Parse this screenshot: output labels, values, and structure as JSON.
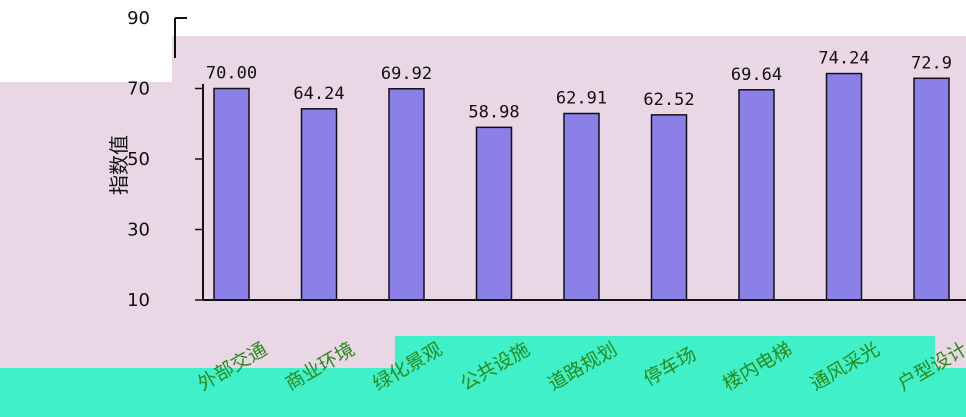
{
  "chart_data": {
    "type": "bar",
    "ylabel": "指数值",
    "ylim": [
      10,
      90
    ],
    "yticks": [
      10,
      30,
      50,
      70,
      90
    ],
    "grid": false,
    "categories": [
      "外部交通",
      "商业环境",
      "绿化景观",
      "公共设施",
      "道路规划",
      "停车场",
      "楼内电梯",
      "通风采光",
      "户型设计"
    ],
    "values": [
      70.0,
      64.24,
      69.92,
      58.98,
      62.91,
      62.52,
      69.64,
      74.24,
      72.9
    ],
    "data_labels": [
      "70.00",
      "64.24",
      "69.92",
      "58.98",
      "62.91",
      "62.52",
      "69.64",
      "74.24",
      "72.9"
    ],
    "colors": {
      "plot_background": "#e9d7e6",
      "bar_fill": "#8a80e8",
      "bar_stroke": "#111111",
      "bottom_band": "#40f0c8",
      "category_text": "#2a8a1a"
    }
  }
}
